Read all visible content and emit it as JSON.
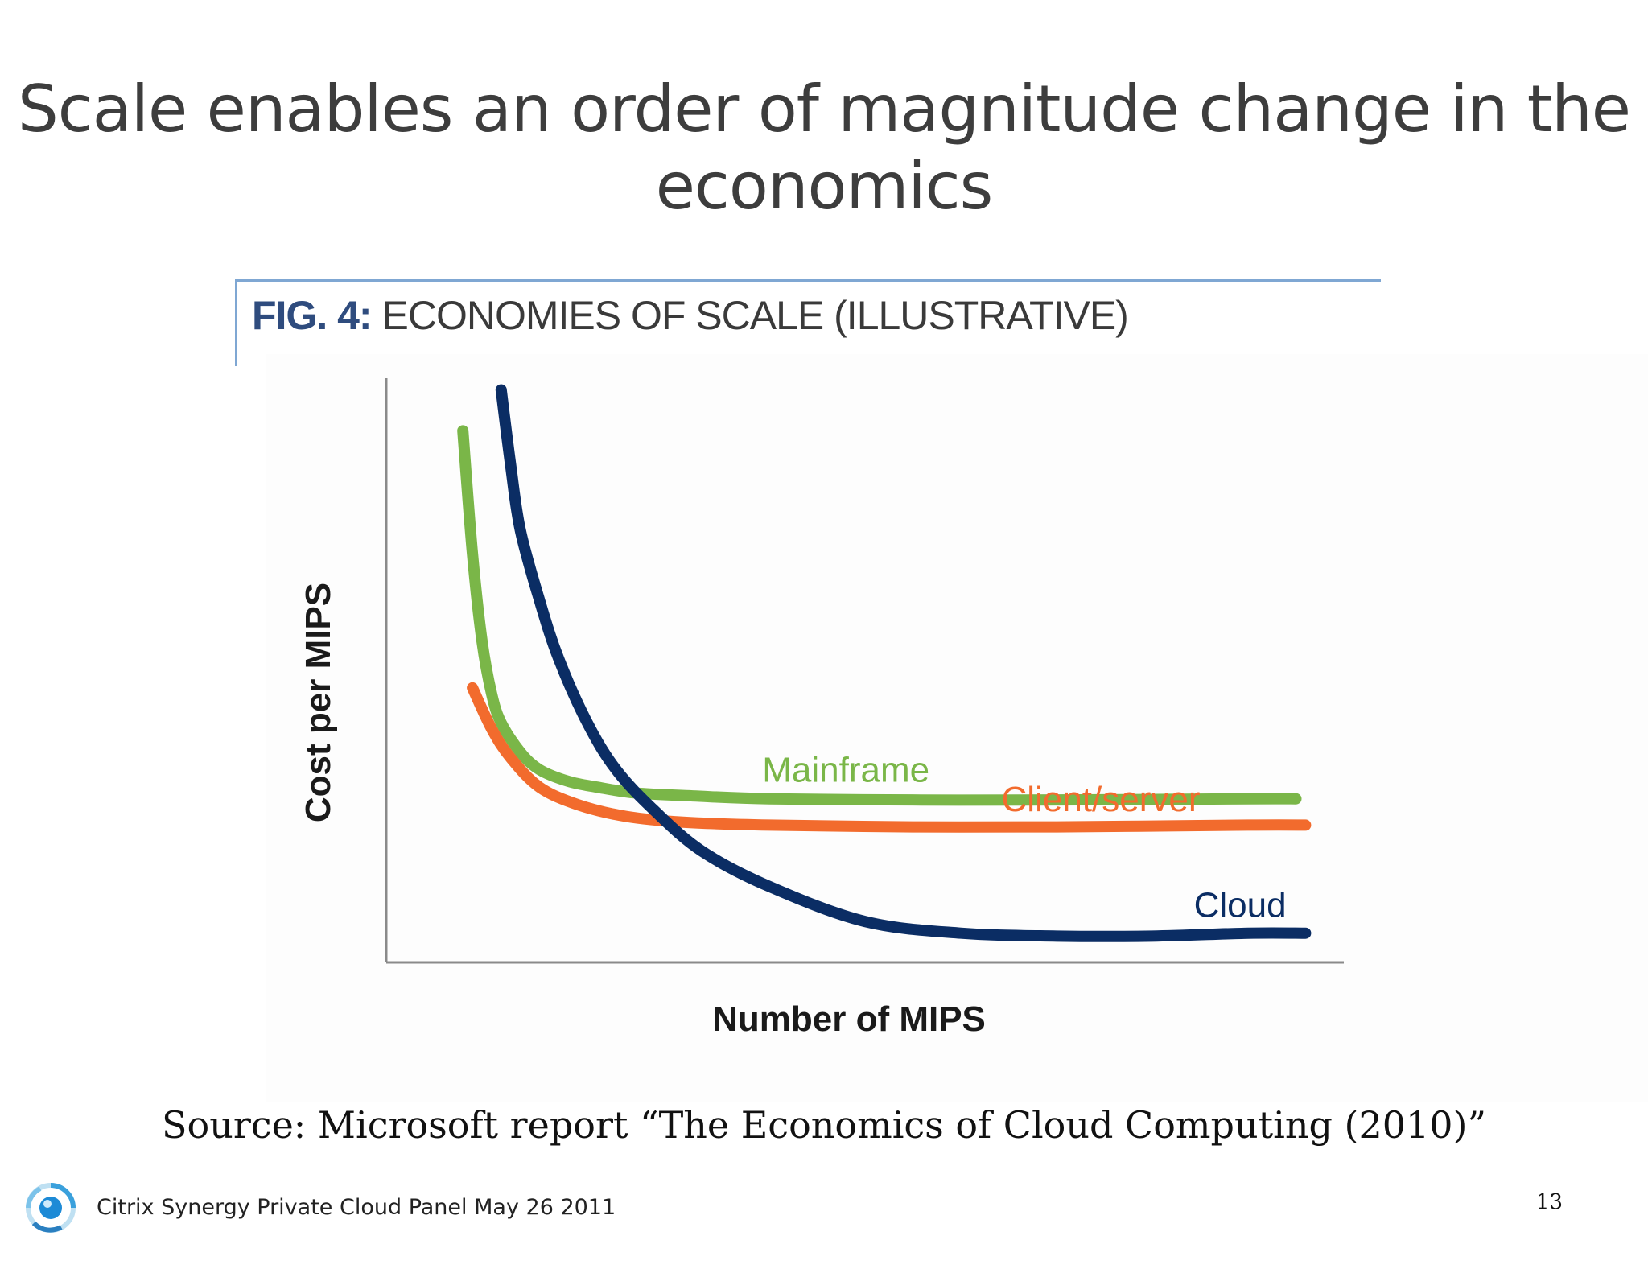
{
  "slide": {
    "title_line1": "Scale enables an order of magnitude change in the",
    "title_line2": "economics",
    "source": "Source: Microsoft report “The Economics of Cloud Computing (2010)”",
    "footer": "Citrix Synergy Private Cloud Panel May 26 2011",
    "page_number": "13",
    "logo_icon": "citrix-orb-logo-icon"
  },
  "figure": {
    "label": "FIG. 4:",
    "title": "ECONOMIES OF SCALE (ILLUSTRATIVE)"
  },
  "chart_data": {
    "type": "line",
    "title": "FIG. 4: ECONOMIES OF SCALE (ILLUSTRATIVE)",
    "xlabel": "Number of MIPS",
    "ylabel": "Cost per MIPS",
    "illustrative": true,
    "axis_ticks": false,
    "grid": false,
    "legend": "inline labels at right",
    "xlim": [
      0,
      100
    ],
    "ylim": [
      0,
      100
    ],
    "series": [
      {
        "name": "Mainframe",
        "color": "#7ab648",
        "x": [
          8,
          9,
          10,
          11,
          12,
          14,
          16,
          19,
          22,
          26,
          32,
          40,
          55,
          70,
          90,
          95
        ],
        "y": [
          91,
          70,
          55,
          46,
          41,
          36,
          33,
          31,
          30,
          29,
          28.5,
          28,
          27.8,
          27.8,
          28,
          28
        ]
      },
      {
        "name": "Client/server",
        "color": "#f26b2d",
        "x": [
          9,
          11,
          13,
          16,
          20,
          25,
          31,
          40,
          55,
          70,
          90,
          96
        ],
        "y": [
          47,
          40,
          35,
          30,
          27,
          25,
          24,
          23.5,
          23.2,
          23.2,
          23.5,
          23.5
        ]
      },
      {
        "name": "Cloud",
        "color": "#0b2d64",
        "x": [
          12,
          13,
          14,
          16,
          18,
          21,
          24,
          28,
          33,
          40,
          50,
          60,
          70,
          80,
          90,
          96
        ],
        "y": [
          98,
          85,
          74,
          62,
          52,
          41,
          33,
          26,
          19,
          13,
          7,
          5,
          4.5,
          4.5,
          5,
          5
        ]
      }
    ]
  }
}
